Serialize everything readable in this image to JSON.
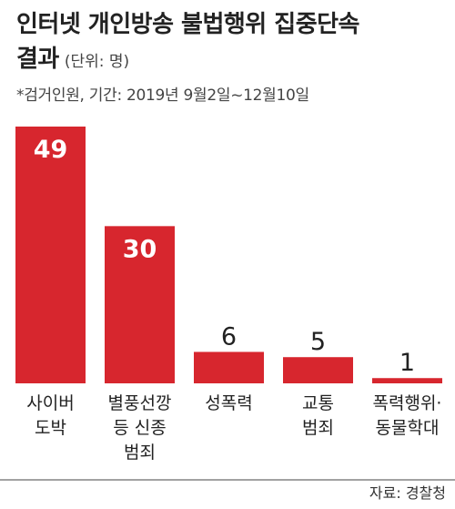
{
  "title_line1": "인터넷 개인방송 불법행위 집중단속",
  "title_line2": "결과",
  "unit": "(단위: 명)",
  "subtitle": "*검거인원, 기간: 2019년 9월2일~12월10일",
  "source": "자료: 경찰청",
  "colors": {
    "bar": "#d7262e",
    "value_on_bar": "#ffffff",
    "value_above": "#222222",
    "text": "#222222"
  },
  "chart_data": {
    "type": "bar",
    "title": "인터넷 개인방송 불법행위 집중단속 결과",
    "ylabel": "(단위: 명)",
    "categories": [
      [
        "사이버",
        "도박"
      ],
      [
        "별풍선깡",
        "등 신종",
        "범죄"
      ],
      [
        "성폭력"
      ],
      [
        "교통",
        "범죄"
      ],
      [
        "폭력행위·",
        "동물학대"
      ]
    ],
    "values": [
      49,
      30,
      6,
      5,
      1
    ],
    "ylim": [
      0,
      49
    ]
  }
}
